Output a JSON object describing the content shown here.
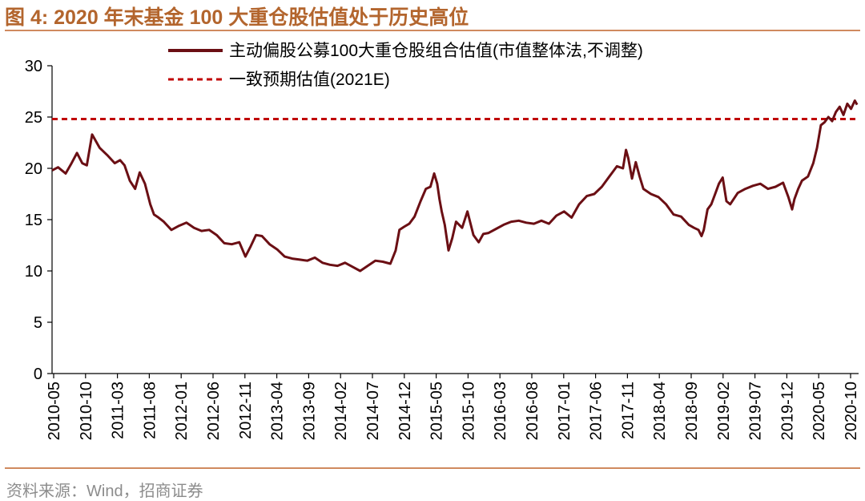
{
  "figure": {
    "title": "图 4:  2020 年末基金 100 大重仓股估值处于历史高位",
    "source": "资料来源：Wind，招商证券"
  },
  "colors": {
    "title": "#b3652d",
    "rule": "#d08a5f",
    "series_main": "#6b0f14",
    "series_consensus": "#c00000",
    "source": "#8c8c8c"
  },
  "chart_data": {
    "type": "line",
    "title": "图 4:  2020 年末基金 100 大重仓股估值处于历史高位",
    "xlabel": "",
    "ylabel": "",
    "ylim": [
      0,
      30
    ],
    "yticks": [
      0,
      5,
      10,
      15,
      20,
      25,
      30
    ],
    "xrange": [
      2010.37,
      2021.05
    ],
    "grid": false,
    "legend_position": "top",
    "x_tick_labels": [
      "2010-05",
      "2010-10",
      "2011-03",
      "2011-08",
      "2012-01",
      "2012-06",
      "2012-11",
      "2013-04",
      "2013-09",
      "2014-02",
      "2014-07",
      "2014-12",
      "2015-05",
      "2015-10",
      "2016-03",
      "2016-08",
      "2017-01",
      "2017-06",
      "2017-11",
      "2018-04",
      "2018-09",
      "2019-02",
      "2019-07",
      "2019-12",
      "2020-05",
      "2020-10"
    ],
    "series": [
      {
        "name": "主动偏股公募100大重仓股组合估值(市值整体法,不调整)",
        "style": "solid",
        "x": [
          2010.37,
          2010.45,
          2010.55,
          2010.62,
          2010.7,
          2010.77,
          2010.83,
          2010.9,
          2011.0,
          2011.1,
          2011.2,
          2011.27,
          2011.33,
          2011.4,
          2011.47,
          2011.53,
          2011.6,
          2011.67,
          2011.72,
          2011.78,
          2011.85,
          2011.95,
          2012.05,
          2012.15,
          2012.25,
          2012.35,
          2012.45,
          2012.55,
          2012.65,
          2012.75,
          2012.85,
          2012.93,
          2013.0,
          2013.07,
          2013.15,
          2013.25,
          2013.35,
          2013.45,
          2013.55,
          2013.65,
          2013.75,
          2013.85,
          2013.95,
          2014.05,
          2014.15,
          2014.25,
          2014.35,
          2014.45,
          2014.55,
          2014.65,
          2014.75,
          2014.85,
          2014.92,
          2014.97,
          2015.03,
          2015.1,
          2015.17,
          2015.25,
          2015.32,
          2015.38,
          2015.43,
          2015.47,
          2015.5,
          2015.53,
          2015.57,
          2015.62,
          2015.67,
          2015.72,
          2015.8,
          2015.87,
          2015.95,
          2016.02,
          2016.08,
          2016.15,
          2016.25,
          2016.35,
          2016.45,
          2016.55,
          2016.65,
          2016.75,
          2016.85,
          2016.95,
          2017.05,
          2017.15,
          2017.25,
          2017.35,
          2017.45,
          2017.55,
          2017.65,
          2017.75,
          2017.85,
          2017.93,
          2017.97,
          2018.0,
          2018.05,
          2018.1,
          2018.15,
          2018.2,
          2018.3,
          2018.4,
          2018.5,
          2018.6,
          2018.7,
          2018.8,
          2018.87,
          2018.93,
          2018.97,
          2019.0,
          2019.05,
          2019.1,
          2019.15,
          2019.2,
          2019.25,
          2019.3,
          2019.35,
          2019.45,
          2019.55,
          2019.65,
          2019.75,
          2019.85,
          2019.95,
          2020.05,
          2020.12,
          2020.17,
          2020.2,
          2020.25,
          2020.3,
          2020.38,
          2020.45,
          2020.5,
          2020.55,
          2020.6,
          2020.65,
          2020.7,
          2020.75,
          2020.8,
          2020.85,
          2020.9,
          2020.95,
          2021.0,
          2021.03
        ],
        "values": [
          19.8,
          20.1,
          19.5,
          20.4,
          21.5,
          20.5,
          20.3,
          23.3,
          22.0,
          21.3,
          20.5,
          20.8,
          20.3,
          18.8,
          18.0,
          19.6,
          18.5,
          16.5,
          15.5,
          15.2,
          14.8,
          14.0,
          14.4,
          14.7,
          14.2,
          13.9,
          14.0,
          13.5,
          12.7,
          12.6,
          12.8,
          11.4,
          12.4,
          13.5,
          13.4,
          12.6,
          12.1,
          11.4,
          11.2,
          11.1,
          11.0,
          11.3,
          10.8,
          10.6,
          10.5,
          10.8,
          10.4,
          10.0,
          10.5,
          11.0,
          10.9,
          10.7,
          12.0,
          14.0,
          14.3,
          14.6,
          15.3,
          16.8,
          18.0,
          18.2,
          19.5,
          18.5,
          17.0,
          15.8,
          14.5,
          12.0,
          13.2,
          14.8,
          14.2,
          15.8,
          13.5,
          12.8,
          13.6,
          13.7,
          14.1,
          14.5,
          14.8,
          14.9,
          14.7,
          14.6,
          14.9,
          14.6,
          15.4,
          15.8,
          15.2,
          16.5,
          17.3,
          17.5,
          18.2,
          19.2,
          20.2,
          20.0,
          21.8,
          21.0,
          19.0,
          20.6,
          19.2,
          18.0,
          17.5,
          17.2,
          16.5,
          15.5,
          15.3,
          14.5,
          14.2,
          14.0,
          13.4,
          14.0,
          16.0,
          16.5,
          17.5,
          18.5,
          19.1,
          16.8,
          16.5,
          17.6,
          18.0,
          18.3,
          18.5,
          18.0,
          18.2,
          18.6,
          17.2,
          16.0,
          17.0,
          18.0,
          18.8,
          19.2,
          20.5,
          22.0,
          24.2,
          24.5,
          25.0,
          24.6,
          25.5,
          26.0,
          25.2,
          26.3,
          25.8,
          26.6,
          26.2
        ]
      },
      {
        "name": "一致预期估值(2021E)",
        "style": "dashed",
        "values": [
          24.8
        ]
      }
    ]
  }
}
